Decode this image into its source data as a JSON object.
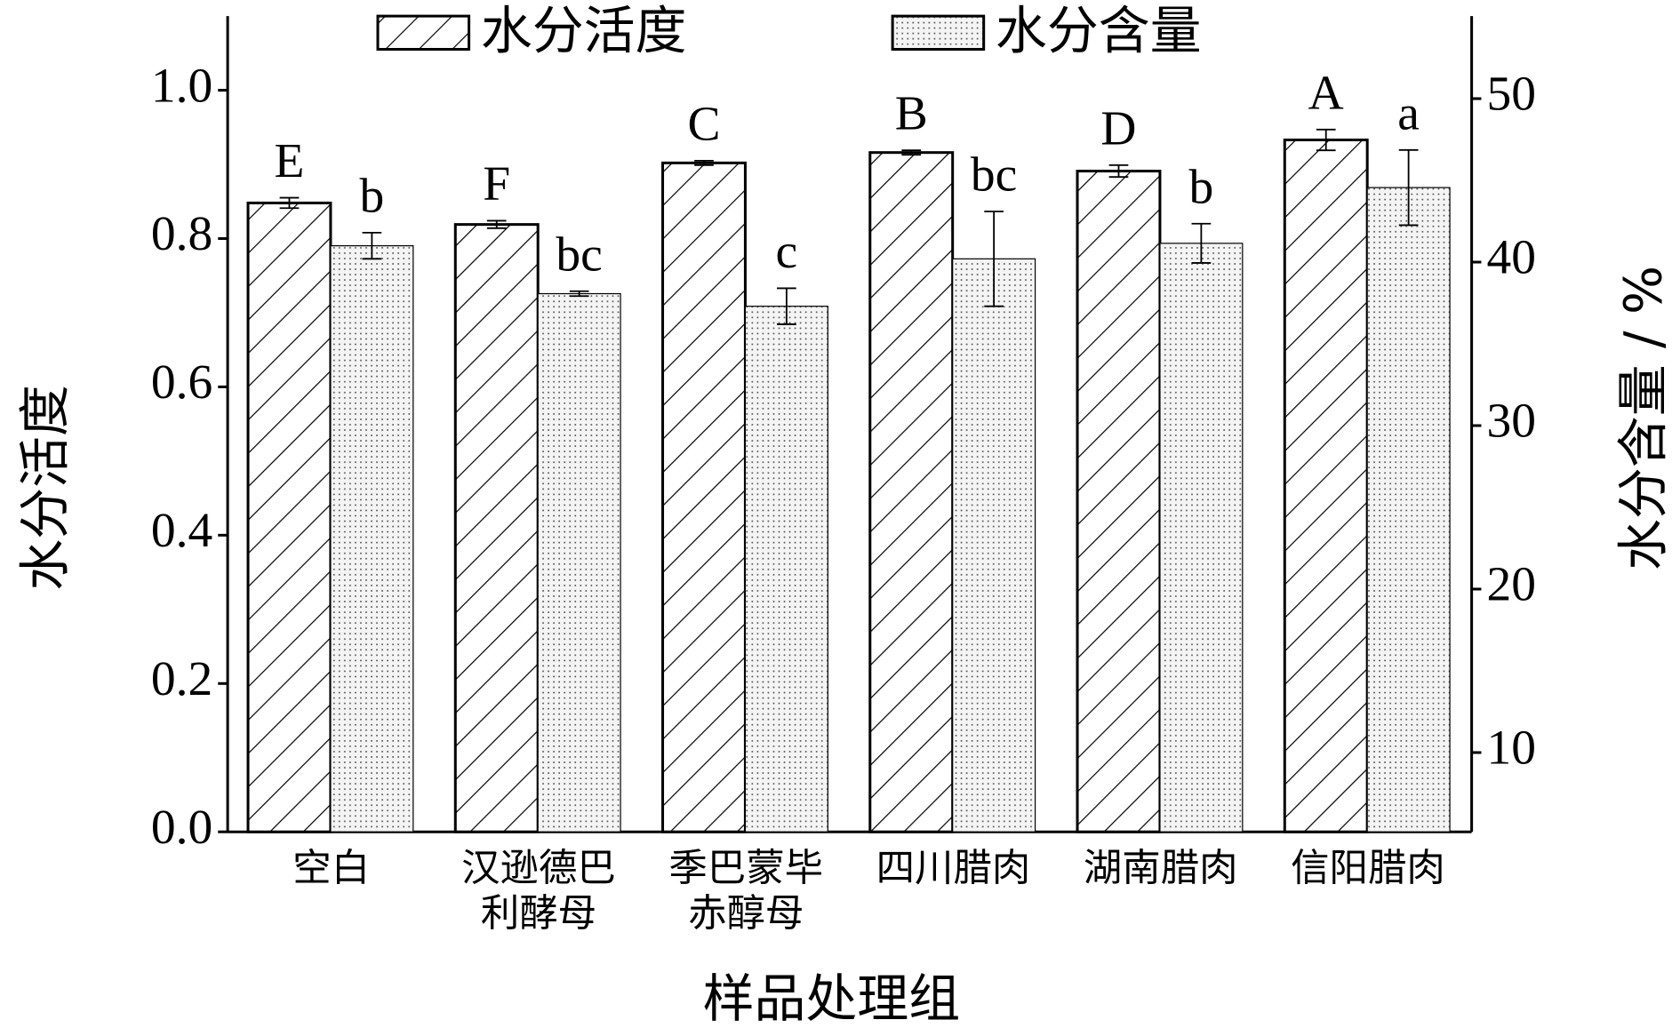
{
  "chart_data": {
    "type": "bar",
    "x_label": "样品处理组",
    "y_label": "水分活度",
    "y2_label": "水分含量 / %",
    "categories": [
      "空白",
      "汉逊德巴利酵母",
      "季巴蒙毕赤醇母",
      "四川腊肉",
      "湖南腊肉",
      "信阳腊肉"
    ],
    "series": [
      {
        "name": "水分活度",
        "pattern": "hatch",
        "color": "#000000",
        "axis": "y",
        "values": [
          0.848,
          0.819,
          0.902,
          0.916,
          0.891,
          0.933
        ],
        "errors": [
          0.007,
          0.005,
          0.003,
          0.003,
          0.008,
          0.014
        ],
        "annotations": [
          "E",
          "F",
          "C",
          "B",
          "D",
          "A"
        ]
      },
      {
        "name": "水分含量",
        "pattern": "dots",
        "color": "#000000",
        "axis": "y2",
        "values": [
          41.0,
          38.07,
          37.3,
          40.2,
          41.15,
          44.56
        ],
        "errors": [
          0.8,
          0.15,
          1.1,
          2.9,
          1.2,
          2.3
        ],
        "annotations": [
          "b",
          "bc",
          "c",
          "bc",
          "b",
          "a"
        ]
      }
    ],
    "ylim": [
      0,
      1.1
    ],
    "yticks": [
      {
        "value": 0,
        "label": "0.0"
      },
      {
        "value": 0.2,
        "label": "0.2"
      },
      {
        "value": 0.4,
        "label": "0.4"
      },
      {
        "value": 0.6,
        "label": "0.6"
      },
      {
        "value": 0.8,
        "label": "0.8"
      },
      {
        "value": 1,
        "label": "1.0"
      }
    ],
    "y2lim": [
      5.15,
      55.05
    ],
    "y2ticks": [
      10,
      20,
      30,
      40,
      50
    ],
    "legend": "top"
  }
}
